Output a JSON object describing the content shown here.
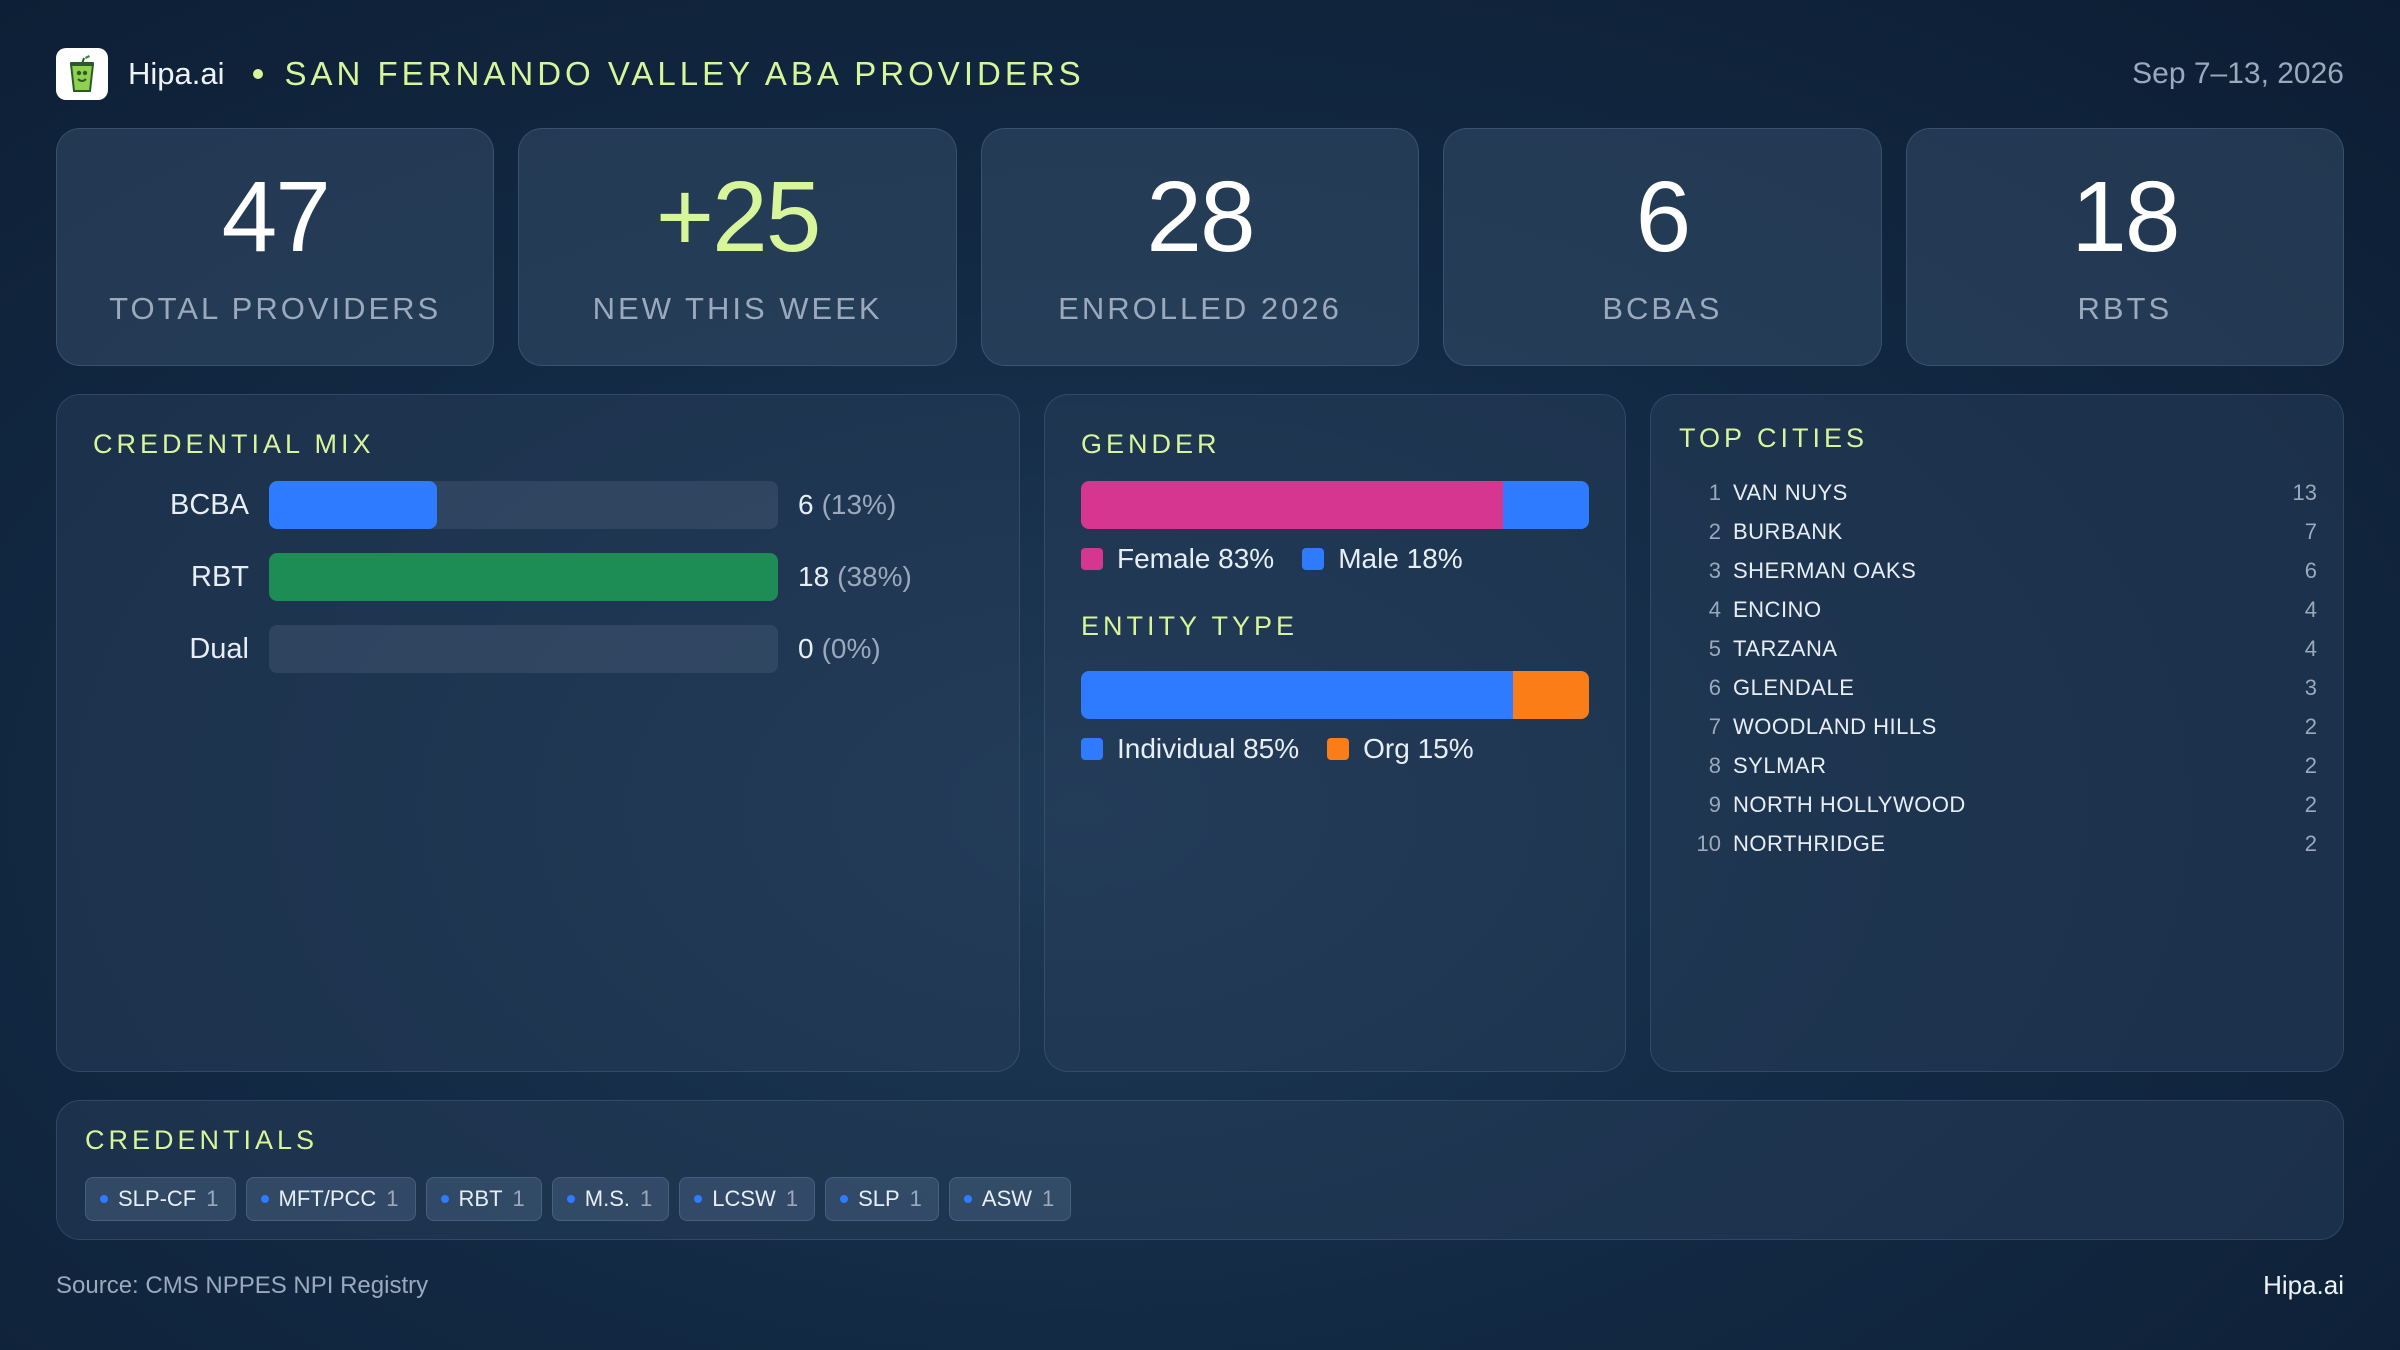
{
  "header": {
    "brand": "Hipa.ai",
    "title": "SAN FERNANDO VALLEY  ABA PROVIDERS",
    "date": "Sep 7–13, 2026",
    "logo_icon": "cup-icon"
  },
  "kpis": [
    {
      "value": "47",
      "label": "TOTAL  PROVIDERS",
      "highlight": false
    },
    {
      "value": "+25",
      "label": "NEW THIS WEEK",
      "highlight": true
    },
    {
      "value": "28",
      "label": "ENROLLED 2026",
      "highlight": false
    },
    {
      "value": "6",
      "label": "BCBAS",
      "highlight": false
    },
    {
      "value": "18",
      "label": "RBTS",
      "highlight": false
    }
  ],
  "credential_mix": {
    "title": "CREDENTIAL  MIX",
    "rows": [
      {
        "name": "BCBA",
        "value": "6",
        "pct": "(13%)",
        "fraction": 0.33,
        "color": "#2f7bff"
      },
      {
        "name": "RBT",
        "value": "18",
        "pct": "(38%)",
        "fraction": 1.0,
        "color": "#1e8c55"
      },
      {
        "name": "Dual",
        "value": "0",
        "pct": "(0%)",
        "fraction": 0.0,
        "color": "#2f7bff"
      }
    ]
  },
  "gender": {
    "title": "GENDER",
    "segments": [
      {
        "label": "Female 83%",
        "fraction": 0.83,
        "color": "#d6368f"
      },
      {
        "label": "Male 18%",
        "fraction": 0.17,
        "color": "#2f7bff"
      }
    ]
  },
  "entity_type": {
    "title": "ENTITY  TYPE",
    "segments": [
      {
        "label": "Individual 85%",
        "fraction": 0.85,
        "color": "#2f7bff"
      },
      {
        "label": "Org 15%",
        "fraction": 0.15,
        "color": "#fa7d18"
      }
    ]
  },
  "top_cities": {
    "title": "TOP  CITIES",
    "items": [
      {
        "rank": "1",
        "name": "VAN NUYS",
        "count": "13"
      },
      {
        "rank": "2",
        "name": "BURBANK",
        "count": "7"
      },
      {
        "rank": "3",
        "name": "SHERMAN OAKS",
        "count": "6"
      },
      {
        "rank": "4",
        "name": "ENCINO",
        "count": "4"
      },
      {
        "rank": "5",
        "name": "TARZANA",
        "count": "4"
      },
      {
        "rank": "6",
        "name": "GLENDALE",
        "count": "3"
      },
      {
        "rank": "7",
        "name": "WOODLAND HILLS",
        "count": "2"
      },
      {
        "rank": "8",
        "name": "SYLMAR",
        "count": "2"
      },
      {
        "rank": "9",
        "name": "NORTH HOLLYWOOD",
        "count": "2"
      },
      {
        "rank": "10",
        "name": "NORTHRIDGE",
        "count": "2"
      }
    ]
  },
  "credentials": {
    "title": "CREDENTIALS",
    "chips": [
      {
        "label": "SLP-CF",
        "count": "1"
      },
      {
        "label": "MFT/PCC",
        "count": "1"
      },
      {
        "label": "RBT",
        "count": "1"
      },
      {
        "label": "M.S.",
        "count": "1"
      },
      {
        "label": "LCSW",
        "count": "1"
      },
      {
        "label": "SLP",
        "count": "1"
      },
      {
        "label": "ASW",
        "count": "1"
      }
    ]
  },
  "footer": {
    "source": "Source: CMS NPPES NPI Registry",
    "brand": "Hipa.ai"
  }
}
